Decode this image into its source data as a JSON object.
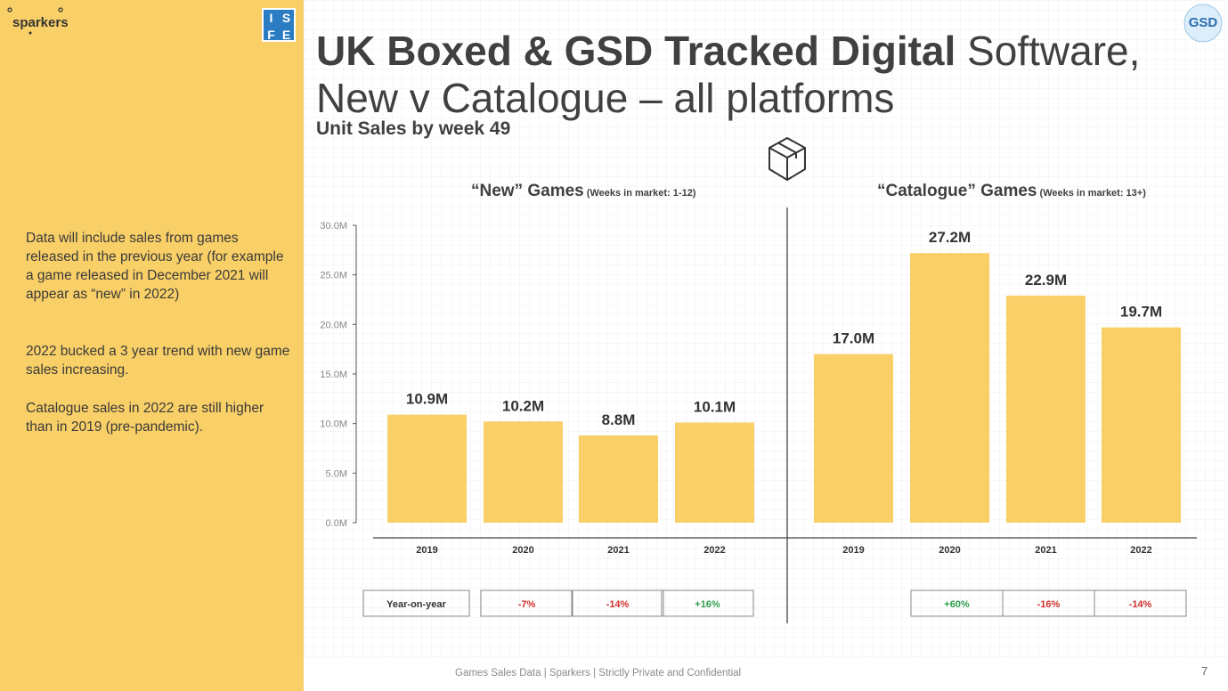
{
  "sidebar": {
    "logo_text": "sparkers",
    "isfe_logo": [
      "I",
      "S",
      "F",
      "E"
    ],
    "notes": [
      "Data will include sales from games released in the previous year (for example a game released in December 2021 will appear as “new” in 2022)",
      "2022 bucked a 3 year trend with new game sales increasing.",
      "Catalogue sales in 2022 are still higher than in 2019 (pre-pandemic)."
    ]
  },
  "header": {
    "title_bold": "UK Boxed & GSD Tracked Digital",
    "title_regular": " Software,",
    "title_line2": "New v Catalogue – all platforms",
    "subtitle": "Unit Sales by week 49",
    "gsd_logo_text": "GSD",
    "box_icon": "box-icon"
  },
  "chart_data": {
    "type": "bar",
    "title": "UK Boxed & GSD Tracked Digital Software, New v Catalogue – all platforms",
    "subtitle": "Unit Sales by week 49",
    "ylim": [
      0,
      30
    ],
    "yticks": [
      "0.0M",
      "5.0M",
      "10.0M",
      "15.0M",
      "20.0M",
      "25.0M",
      "30.0M"
    ],
    "bar_color": "#f9cf67",
    "panels": [
      {
        "name": "“New” Games",
        "note": "(Weeks in market: 1-12)",
        "categories": [
          "2019",
          "2020",
          "2021",
          "2022"
        ],
        "values": [
          10.9,
          10.2,
          8.8,
          10.1
        ],
        "labels": [
          "10.9M",
          "10.2M",
          "8.8M",
          "10.1M"
        ],
        "yoy": [
          "-7%",
          "-14%",
          "+16%"
        ]
      },
      {
        "name": "“Catalogue” Games",
        "note": "(Weeks in market: 13+)",
        "categories": [
          "2019",
          "2020",
          "2021",
          "2022"
        ],
        "values": [
          17.0,
          27.2,
          22.9,
          19.7
        ],
        "labels": [
          "17.0M",
          "27.2M",
          "22.9M",
          "19.7M"
        ],
        "yoy": [
          "+60%",
          "-16%",
          "-14%"
        ]
      }
    ],
    "yoy_label": "Year-on-year",
    "colors": {
      "negative": "#d0312d",
      "positive": "#2e9e4f"
    }
  },
  "footer": {
    "text": "Games Sales Data | Sparkers | Strictly Private and Confidential",
    "page": "7"
  }
}
